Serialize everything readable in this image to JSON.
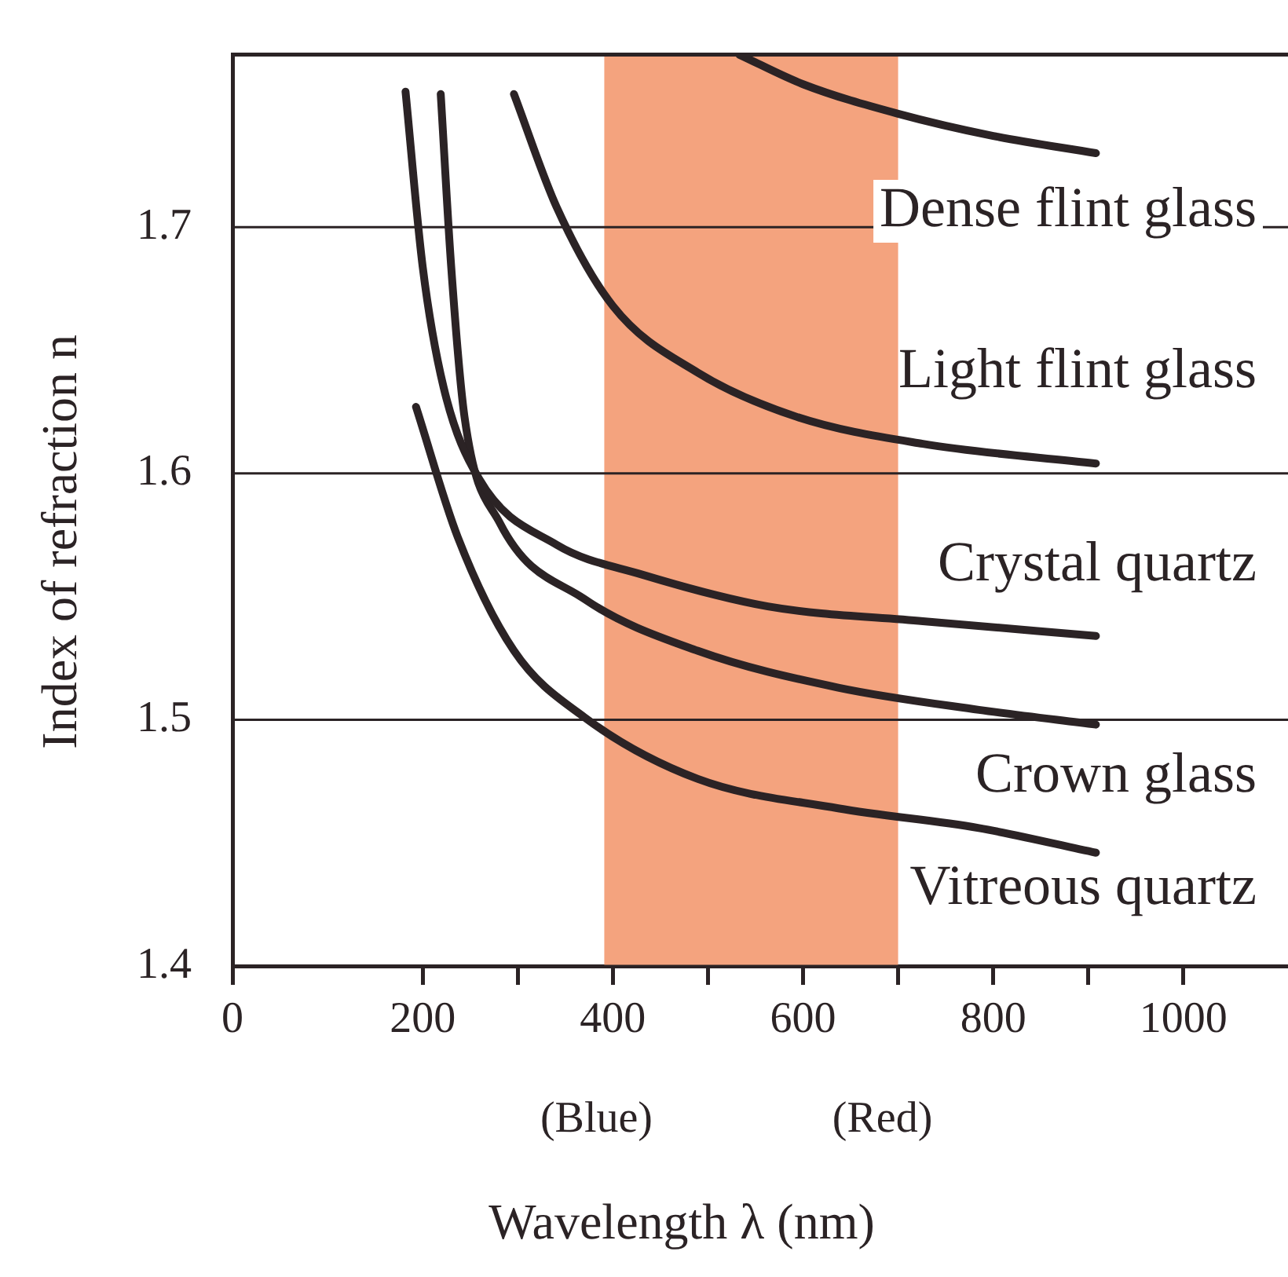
{
  "chart_data": {
    "type": "line",
    "xlabel": "Wavelength λ (nm)",
    "ylabel": "Index of refraction n",
    "xlim": [
      0,
      1110
    ],
    "ylim": [
      1.4,
      1.77
    ],
    "xticks": [
      0,
      200,
      {
        "value": 300,
        "label": null
      },
      400,
      {
        "value": 500,
        "label": null
      },
      600,
      {
        "value": 700,
        "label": null
      },
      800,
      {
        "value": 900,
        "label": null
      },
      1000
    ],
    "yticks": [
      1.4,
      1.5,
      1.6,
      1.7
    ],
    "grid": "y",
    "legend": false,
    "marker": "none",
    "line_style": "solid",
    "bands": [
      {
        "axis": "x",
        "from": 391,
        "to": 700,
        "color": "#f4a37e"
      }
    ],
    "annotations": [
      "(Blue)",
      "(Red)"
    ],
    "series": [
      {
        "name": "Dense flint glass",
        "color": "#2b2325",
        "x": [
          533,
          600,
          700,
          800,
          908
        ],
        "values": [
          1.77,
          1.758,
          1.746,
          1.737,
          1.73
        ]
      },
      {
        "name": "Light flint glass",
        "color": "#2b2325",
        "x": [
          296,
          341,
          400,
          489,
          593,
          726,
          908
        ],
        "values": [
          1.754,
          1.708,
          1.668,
          1.641,
          1.623,
          1.612,
          1.604
        ]
      },
      {
        "name": "Crystal quartz",
        "color": "#2b2325",
        "x": [
          182,
          200,
          222,
          259,
          341,
          430,
          563,
          726,
          908
        ],
        "values": [
          1.755,
          1.684,
          1.635,
          1.598,
          1.571,
          1.559,
          1.546,
          1.54,
          1.534
        ]
      },
      {
        "name": "Crown glass",
        "color": "#2b2325",
        "x": [
          219,
          230,
          244,
          281,
          370,
          489,
          637,
          785,
          908
        ],
        "values": [
          1.754,
          1.684,
          1.623,
          1.58,
          1.549,
          1.528,
          1.513,
          1.504,
          1.498
        ]
      },
      {
        "name": "Vitreous quartz",
        "color": "#2b2325",
        "x": [
          193,
          237,
          296,
          370,
          489,
          637,
          785,
          908
        ],
        "values": [
          1.627,
          1.574,
          1.528,
          1.501,
          1.476,
          1.464,
          1.456,
          1.446
        ]
      }
    ]
  }
}
